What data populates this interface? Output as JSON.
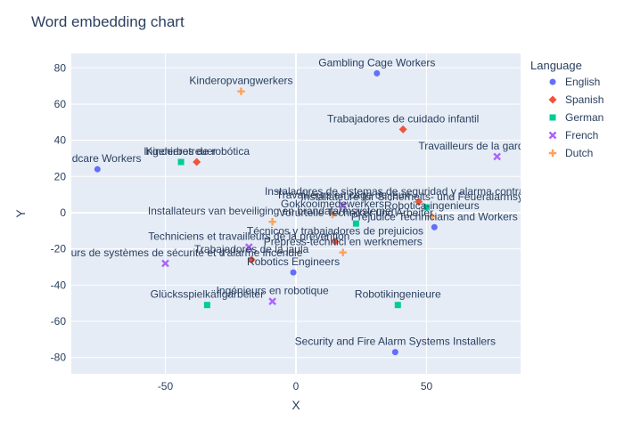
{
  "chart_data": {
    "type": "scatter",
    "title": "Word embedding chart",
    "xlabel": "X",
    "ylabel": "Y",
    "xlim": [
      -86,
      86
    ],
    "ylim": [
      -89,
      88
    ],
    "xticks": [
      -50,
      0,
      50
    ],
    "yticks": [
      -80,
      -60,
      -40,
      -20,
      0,
      20,
      40,
      60,
      80
    ],
    "grid": true,
    "legend_title": "Language",
    "legend_position": "right",
    "series": [
      {
        "name": "English",
        "color": "#636efa",
        "marker": "circle",
        "points": [
          {
            "x": 31,
            "y": 77,
            "label": "Gambling Cage Workers"
          },
          {
            "x": -76,
            "y": 24,
            "label": "Childcare Workers"
          },
          {
            "x": -1,
            "y": -33,
            "label": "Robotics Engineers"
          },
          {
            "x": 38,
            "y": -77,
            "label": "Security and Fire Alarm Systems Installers"
          },
          {
            "x": 53,
            "y": -8,
            "label": "Prejudice Technicians and Workers"
          }
        ]
      },
      {
        "name": "Spanish",
        "color": "#ef553b",
        "marker": "diamond",
        "points": [
          {
            "x": 41,
            "y": 46,
            "label": "Trabajadores de cuidado infantil"
          },
          {
            "x": -38,
            "y": 28,
            "label": "Ingenieros de robótica"
          },
          {
            "x": 47,
            "y": 6,
            "label": "Instaladores de sistemas de seguridad y alarma contra incendios"
          },
          {
            "x": 15,
            "y": -16,
            "label": "Técnicos y trabajadores de prejuicios"
          },
          {
            "x": -17,
            "y": -26,
            "label": "Trabajadores de la jaula"
          }
        ]
      },
      {
        "name": "German",
        "color": "#00cc96",
        "marker": "square",
        "points": [
          {
            "x": -44,
            "y": 28,
            "label": "Kinderbetreuer"
          },
          {
            "x": 23,
            "y": -6,
            "label": "Vorurteile Techniker und Arbeiter"
          },
          {
            "x": 39,
            "y": -51,
            "label": "Robotikingenieure"
          },
          {
            "x": -34,
            "y": -51,
            "label": "Glücksspielkäfigarbeiter"
          },
          {
            "x": 50,
            "y": 3,
            "label": "Installateure für Sicherheits- und Feueralarmsysteme"
          }
        ]
      },
      {
        "name": "French",
        "color": "#ab63fa",
        "marker": "x",
        "points": [
          {
            "x": 77,
            "y": 31,
            "label": "Travailleurs de la garde d'enfants"
          },
          {
            "x": 18,
            "y": 4,
            "label": "Travailleurs en cage de jeux"
          },
          {
            "x": -18,
            "y": -19,
            "label": "Techniciens et travailleurs de la prévention"
          },
          {
            "x": -50,
            "y": -28,
            "label": "Installateurs de systèmes de sécurité et d'alarme incendie"
          },
          {
            "x": -9,
            "y": -49,
            "label": "Ingénieurs en robotique"
          }
        ]
      },
      {
        "name": "Dutch",
        "color": "#ffa15a",
        "marker": "cross",
        "points": [
          {
            "x": -21,
            "y": 67,
            "label": "Kinderopvangwerkers"
          },
          {
            "x": -9,
            "y": -5,
            "label": "Installateurs van beveiliging en brandalarmsystemen"
          },
          {
            "x": 14,
            "y": -1,
            "label": "Gokkooimedewerkers"
          },
          {
            "x": 18,
            "y": -22,
            "label": "Prepress-technici en werknemers"
          },
          {
            "x": 52,
            "y": -2,
            "label": "Robotica-ingenieurs"
          }
        ]
      }
    ]
  }
}
